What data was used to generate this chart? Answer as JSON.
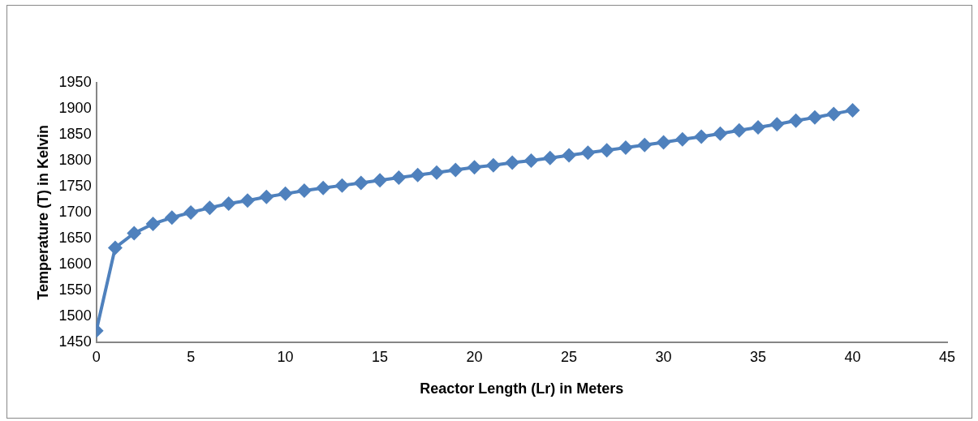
{
  "chart_data": {
    "type": "line",
    "xlabel": "Reactor Length (Lr) in Meters",
    "ylabel": "Temperature (T) in Kelvin",
    "x": [
      0,
      1,
      2,
      3,
      4,
      5,
      6,
      7,
      8,
      9,
      10,
      11,
      12,
      13,
      14,
      15,
      16,
      17,
      18,
      19,
      20,
      21,
      22,
      23,
      24,
      25,
      26,
      27,
      28,
      29,
      30,
      31,
      32,
      33,
      34,
      35,
      36,
      37,
      38,
      39,
      40
    ],
    "series": [
      {
        "color": "#4f81bd",
        "values": [
          1472,
          1632,
          1660,
          1678,
          1690,
          1700,
          1709,
          1717,
          1723,
          1730,
          1736,
          1742,
          1747,
          1752,
          1757,
          1762,
          1767,
          1772,
          1777,
          1782,
          1787,
          1791,
          1796,
          1800,
          1805,
          1810,
          1815,
          1820,
          1825,
          1830,
          1835,
          1841,
          1846,
          1852,
          1858,
          1864,
          1870,
          1877,
          1883,
          1890,
          1897
        ]
      }
    ],
    "xlim": [
      0,
      45
    ],
    "xticks": [
      0,
      5,
      10,
      15,
      20,
      25,
      30,
      35,
      40,
      45
    ],
    "ylim": [
      1450,
      1950
    ],
    "yticks": [
      1450,
      1500,
      1550,
      1600,
      1650,
      1700,
      1750,
      1800,
      1850,
      1900,
      1950
    ],
    "grid": false,
    "legend": false,
    "marker": "diamond",
    "line_style": "solid"
  }
}
